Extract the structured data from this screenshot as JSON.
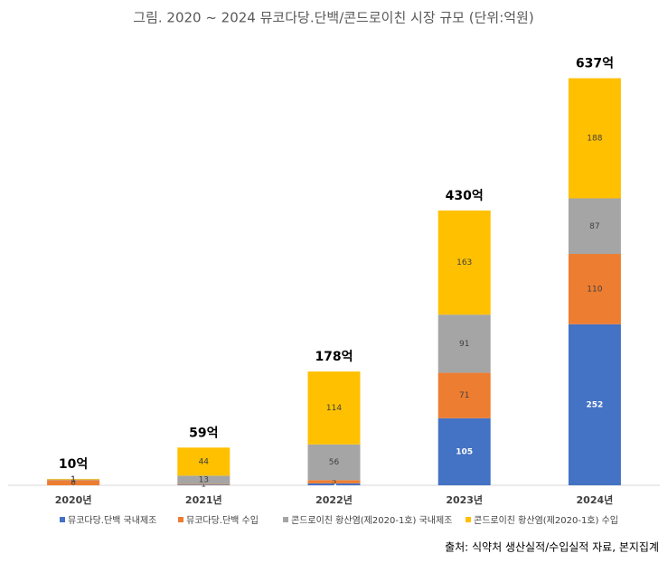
{
  "chart_data": {
    "type": "stacked-bar",
    "title": "그림. 2020 ~ 2024 뮤코다당.단백/콘드로이친 시장 규모 (단위:억원)",
    "categories": [
      "2020년",
      "2021년",
      "2022년",
      "2023년",
      "2024년"
    ],
    "series": [
      {
        "name": "뮤코다당.단백 국내제조",
        "color": "#4472c4",
        "values": [
          0,
          1,
          3,
          105,
          252
        ]
      },
      {
        "name": "뮤코다당.단백 수입",
        "color": "#ed7d31",
        "values": [
          8,
          1,
          5,
          71,
          110
        ]
      },
      {
        "name": "콘드로이친 황산염(제2020-1호) 국내제조",
        "color": "#a5a5a5",
        "values": [
          1,
          13,
          56,
          91,
          87
        ]
      },
      {
        "name": "콘드로이친 황산염(제2020-1호) 수입",
        "color": "#ffc000",
        "values": [
          1,
          44,
          114,
          163,
          188
        ]
      }
    ],
    "totals": [
      10,
      59,
      178,
      430,
      637
    ],
    "total_value_labels": [
      "10억",
      "59억",
      "178억",
      "430억",
      "637억"
    ],
    "ylim": [
      0,
      700
    ],
    "source": "출처: 식약처 생산실적/수입실적 자료, 본지집계"
  }
}
